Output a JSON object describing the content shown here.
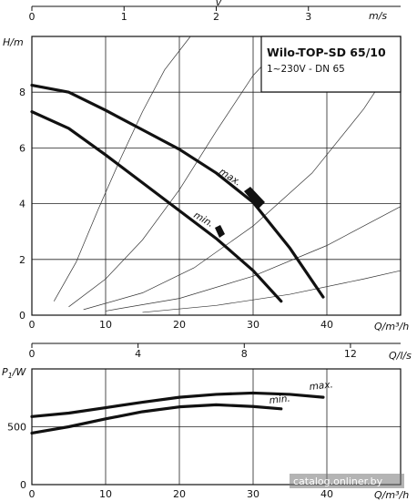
{
  "chart_data": [
    {
      "type": "line",
      "title": "Wilo-TOP-SD 65/10",
      "subtitle": "1~230V - DN 65",
      "xlabel": "Q/m³/h",
      "ylabel": "H/m",
      "xlim": [
        0,
        50
      ],
      "ylim": [
        0,
        10
      ],
      "x_ticks": [
        "0",
        "10",
        "20",
        "30",
        "40"
      ],
      "y_ticks": [
        "0",
        "2",
        "4",
        "6",
        "8"
      ],
      "top_axis": {
        "label": "m/s",
        "range": [
          0,
          4
        ],
        "ticks": [
          "0",
          "1",
          "2",
          "3"
        ]
      },
      "grid": true,
      "series": [
        {
          "name": "max.",
          "x": [
            0,
            5,
            10,
            15,
            20,
            25,
            30,
            35,
            39.5
          ],
          "y": [
            8.25,
            8.0,
            7.35,
            6.65,
            5.95,
            5.1,
            4.05,
            2.4,
            0.65
          ]
        },
        {
          "name": "min.",
          "x": [
            0,
            5,
            10,
            15,
            20,
            25,
            30,
            33.8
          ],
          "y": [
            7.3,
            6.7,
            5.75,
            4.75,
            3.75,
            2.75,
            1.6,
            0.5
          ]
        }
      ],
      "system_curves": [
        {
          "x": [
            3,
            6,
            9,
            12,
            15,
            18,
            21.5
          ],
          "y": [
            0.5,
            1.9,
            3.8,
            5.6,
            7.3,
            8.8,
            10.0
          ]
        },
        {
          "x": [
            5,
            10,
            15,
            20,
            25,
            30,
            35
          ],
          "y": [
            0.3,
            1.3,
            2.7,
            4.5,
            6.6,
            8.6,
            10.0
          ]
        },
        {
          "x": [
            7,
            15,
            22,
            30,
            38,
            45,
            50
          ],
          "y": [
            0.2,
            0.8,
            1.7,
            3.2,
            5.1,
            7.4,
            9.4
          ]
        },
        {
          "x": [
            10,
            20,
            30,
            40,
            50
          ],
          "y": [
            0.15,
            0.6,
            1.4,
            2.5,
            3.9
          ]
        },
        {
          "x": [
            15,
            25,
            35,
            45,
            50
          ],
          "y": [
            0.1,
            0.35,
            0.75,
            1.3,
            1.6
          ]
        }
      ]
    },
    {
      "type": "line",
      "xlabel": "Q/m³/h",
      "ylabel": "P1/W",
      "xlim": [
        0,
        50
      ],
      "ylim": [
        0,
        1000
      ],
      "x_ticks": [
        "0",
        "10",
        "20",
        "30",
        "40"
      ],
      "y_ticks": [
        "0",
        "500"
      ],
      "top_axis": {
        "label": "Q/l/s",
        "ticks": [
          "0",
          "4",
          "8",
          "12"
        ]
      },
      "grid": true,
      "series": [
        {
          "name": "max.",
          "x": [
            0,
            5,
            10,
            15,
            20,
            25,
            30,
            35,
            39.5
          ],
          "y": [
            588,
            618,
            665,
            712,
            755,
            780,
            792,
            780,
            755
          ]
        },
        {
          "name": "min.",
          "x": [
            0,
            5,
            10,
            15,
            20,
            25,
            30,
            33.8
          ],
          "y": [
            445,
            500,
            568,
            630,
            672,
            690,
            675,
            655
          ]
        }
      ]
    }
  ],
  "labels": {
    "top_v_symbol": "v",
    "p1_symbol": "P",
    "p1_sub": "1",
    "p1_unit": "/W"
  },
  "watermark": "catalog.onliner.by"
}
